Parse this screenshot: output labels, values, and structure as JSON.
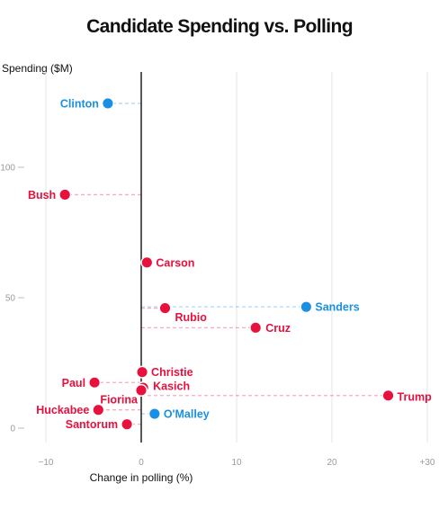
{
  "chart_data": {
    "type": "scatter",
    "title": "Candidate Spending vs. Polling",
    "xlabel": "Change in polling (%)",
    "ylabel": "Spending ($M)",
    "xlim": [
      -12,
      31
    ],
    "ylim": [
      -8,
      140
    ],
    "x_ticks": [
      -10,
      0,
      10,
      20,
      30
    ],
    "x_tick_labels": [
      "−10",
      "0",
      "10",
      "20",
      "+30"
    ],
    "y_ticks": [
      0,
      50,
      100
    ],
    "y_tick_labels": [
      "0",
      "50",
      "100"
    ],
    "grid": "vertical",
    "colors": {
      "democrat": "#1a8fe3",
      "republican": "#e8103c"
    },
    "points": [
      {
        "name": "Clinton",
        "x": -3.5,
        "y": 124.5,
        "party": "democrat"
      },
      {
        "name": "Bush",
        "x": -8.0,
        "y": 89.5,
        "party": "republican"
      },
      {
        "name": "Carson",
        "x": 0.6,
        "y": 63.5,
        "party": "republican"
      },
      {
        "name": "Sanders",
        "x": 17.3,
        "y": 46.5,
        "party": "democrat"
      },
      {
        "name": "Rubio",
        "x": 2.5,
        "y": 46.0,
        "party": "republican"
      },
      {
        "name": "Cruz",
        "x": 12.0,
        "y": 38.5,
        "party": "republican"
      },
      {
        "name": "Christie",
        "x": 0.1,
        "y": 21.5,
        "party": "republican"
      },
      {
        "name": "Paul",
        "x": -4.9,
        "y": 17.5,
        "party": "republican"
      },
      {
        "name": "Kasich",
        "x": 0.2,
        "y": 15.5,
        "party": "republican"
      },
      {
        "name": "Fiorina",
        "x": 0.0,
        "y": 14.5,
        "party": "republican"
      },
      {
        "name": "Trump",
        "x": 25.9,
        "y": 12.5,
        "party": "republican"
      },
      {
        "name": "Huckabee",
        "x": -4.5,
        "y": 7.0,
        "party": "republican"
      },
      {
        "name": "O'Malley",
        "x": 1.4,
        "y": 5.5,
        "party": "democrat"
      },
      {
        "name": "Santorum",
        "x": -1.5,
        "y": 1.5,
        "party": "republican"
      }
    ]
  }
}
